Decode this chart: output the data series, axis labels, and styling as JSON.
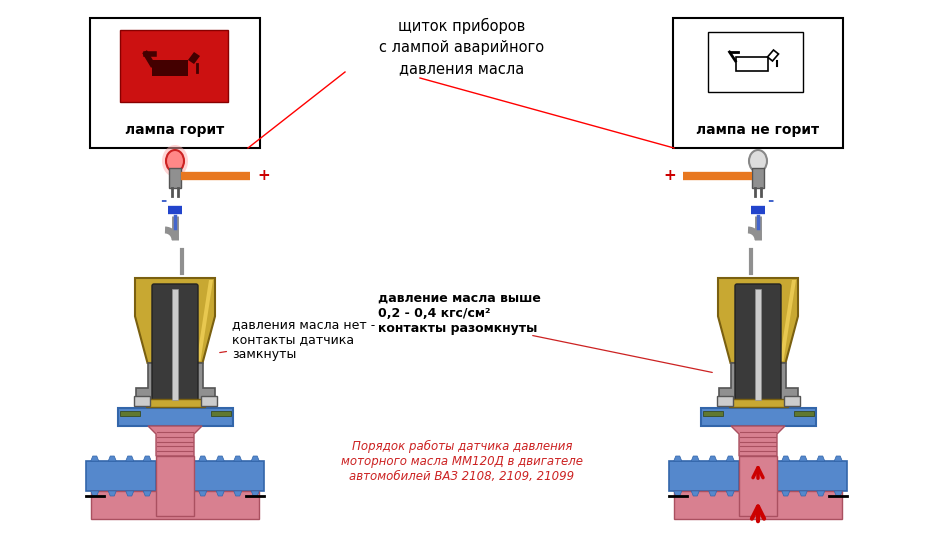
{
  "bg_color": "#ffffff",
  "title_center": "щиток приборов\nс лампой аварийного\nдавления масла",
  "label_left": "лампа горит",
  "label_right": "лампа не горит",
  "text_left_desc": "давления масла нет -\nконтакты датчика\nзамкнуты",
  "text_right_desc": "давление масла выше\n0,2 - 0,4 кгс/см²\nконтакты разомкнуты",
  "text_bottom": "Порядок работы датчика давления\nмоторного масла ММ120Д в двигателе\nавтомобилей ВАЗ 2108, 2109, 21099",
  "plus_sign": "+",
  "minus_sign": "-",
  "red_color": "#cc0000",
  "orange_color": "#e87820",
  "blue_wire": "#4466cc",
  "blue_body": "#5588cc",
  "gold_color": "#c8a832",
  "gold_dark": "#7a6010",
  "gray_color": "#909090",
  "gray_dark": "#555555",
  "gray_light": "#cccccc",
  "pink_color": "#d88090",
  "green_color": "#607830",
  "spring_dark": "#222222",
  "spring_light": "#aaaaaa"
}
